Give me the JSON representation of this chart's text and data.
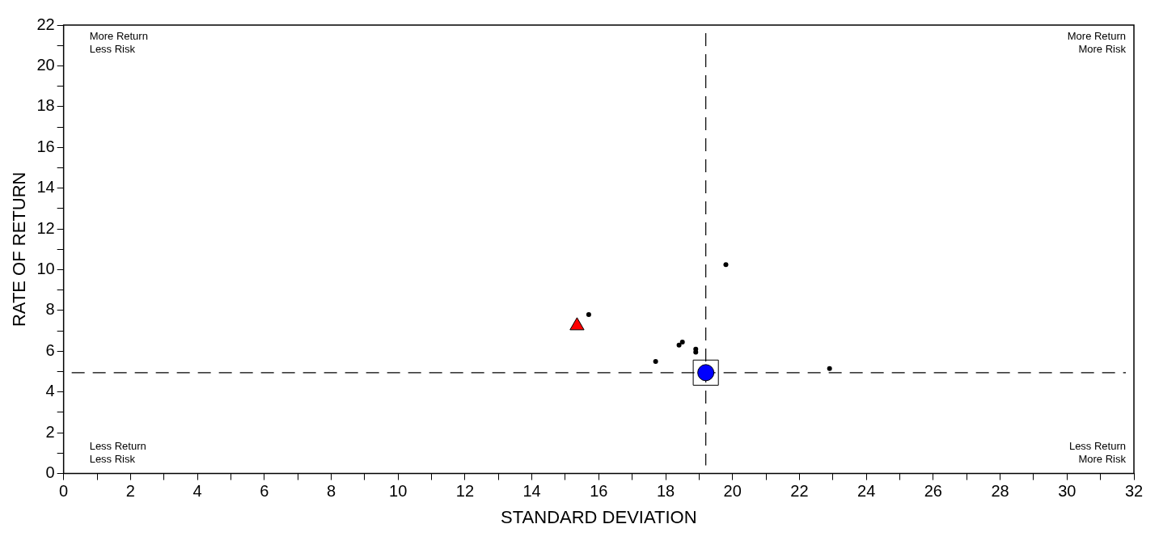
{
  "chart_data": {
    "type": "scatter",
    "xlabel": "STANDARD DEVIATION",
    "ylabel": "RATE OF RETURN",
    "annotations": [
      "More Return\nLess Risk",
      "More Return\nMore Risk",
      "Less Return\nLess Risk",
      "Less Return\nMore Risk"
    ],
    "series": [
      {
        "color": "#000000",
        "marker": "circle",
        "x": [
          15.7,
          19.8,
          17.7,
          18.4,
          18.5,
          18.9,
          18.9,
          22.9
        ],
        "values": [
          7.8,
          10.25,
          5.5,
          6.3,
          6.45,
          6.1,
          5.95,
          5.15
        ]
      },
      {
        "color": "#0000ff",
        "marker": "circle",
        "x": [
          19.2
        ],
        "values": [
          4.95
        ]
      },
      {
        "color": "#000000",
        "marker": "square",
        "x": [
          19.2
        ],
        "values": [
          4.95
        ]
      },
      {
        "color": "#ff0000",
        "marker": "triangle",
        "x": [
          15.35
        ],
        "values": [
          7.25
        ]
      }
    ],
    "ref_lines": [
      {
        "axis": "x",
        "value": 19.2,
        "line_style": "dashed",
        "color": "#000000"
      },
      {
        "axis": "y",
        "value": 4.95,
        "line_style": "dashed",
        "color": "#000000"
      }
    ],
    "xlim": [
      0,
      32
    ],
    "ylim": [
      0,
      22
    ],
    "xticks": [
      0,
      {
        "value": 1,
        "label": null
      },
      2,
      {
        "value": 3,
        "label": null
      },
      4,
      {
        "value": 5,
        "label": null
      },
      6,
      {
        "value": 7,
        "label": null
      },
      8,
      {
        "value": 9,
        "label": null
      },
      10,
      {
        "value": 11,
        "label": null
      },
      12,
      {
        "value": 13,
        "label": null
      },
      14,
      {
        "value": 15,
        "label": null
      },
      16,
      {
        "value": 17,
        "label": null
      },
      18,
      {
        "value": 19,
        "label": null
      },
      20,
      {
        "value": 21,
        "label": null
      },
      22,
      {
        "value": 23,
        "label": null
      },
      24,
      {
        "value": 25,
        "label": null
      },
      26,
      {
        "value": 27,
        "label": null
      },
      28,
      {
        "value": 29,
        "label": null
      },
      30,
      {
        "value": 31,
        "label": null
      },
      32
    ],
    "yticks": [
      0,
      {
        "value": 1,
        "label": null
      },
      2,
      {
        "value": 3,
        "label": null
      },
      4,
      {
        "value": 5,
        "label": null
      },
      6,
      {
        "value": 7,
        "label": null
      },
      8,
      {
        "value": 9,
        "label": null
      },
      10,
      {
        "value": 11,
        "label": null
      },
      12,
      {
        "value": 13,
        "label": null
      },
      14,
      {
        "value": 15,
        "label": null
      },
      16,
      {
        "value": 17,
        "label": null
      },
      18,
      {
        "value": 19,
        "label": null
      },
      20,
      {
        "value": 21,
        "label": null
      },
      22
    ],
    "grid": false,
    "legend": false
  }
}
